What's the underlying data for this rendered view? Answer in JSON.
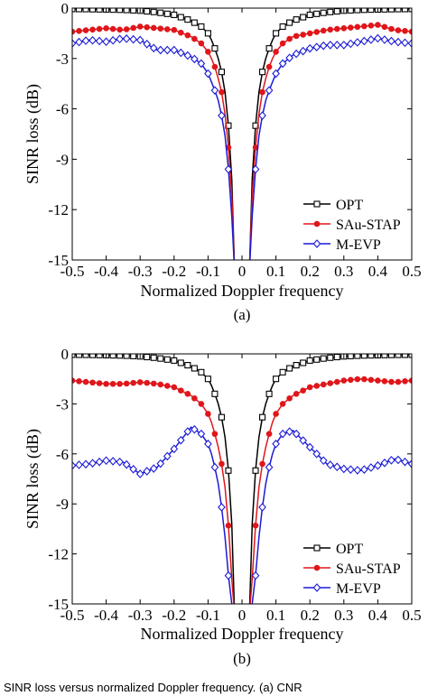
{
  "chart_data": [
    {
      "type": "line",
      "panel_label": "(a)",
      "xlabel": "Normalized Doppler frequency",
      "ylabel": "SINR loss (dB)",
      "xlim": [
        -0.5,
        0.5
      ],
      "ylim": [
        -15,
        0
      ],
      "xticks": [
        -0.5,
        -0.4,
        -0.3,
        -0.2,
        -0.1,
        0,
        0.1,
        0.2,
        0.3,
        0.4,
        0.5
      ],
      "xtick_labels": [
        "-0.5",
        "-0.4",
        "-0.3",
        "-0.2",
        "-0.1",
        "0",
        "0.1",
        "0.2",
        "0.3",
        "0.4",
        "0.5"
      ],
      "yticks": [
        0,
        -3,
        -6,
        -9,
        -12,
        -15
      ],
      "ytick_labels": [
        "0",
        "-3",
        "-6",
        "-9",
        "-12",
        "-15"
      ],
      "grid": false,
      "legend_position": "bottom-right",
      "series": [
        {
          "name": "OPT",
          "color": "#000000",
          "marker": "square",
          "x": [
            -0.5,
            -0.45,
            -0.4,
            -0.35,
            -0.3,
            -0.25,
            -0.2,
            -0.15,
            -0.12,
            -0.1,
            -0.09,
            -0.08,
            -0.07,
            -0.06,
            -0.05,
            -0.04,
            -0.03,
            0.03,
            0.04,
            0.05,
            0.06,
            0.07,
            0.08,
            0.09,
            0.1,
            0.12,
            0.15,
            0.2,
            0.25,
            0.3,
            0.35,
            0.4,
            0.45,
            0.5
          ],
          "y": [
            -0.05,
            -0.06,
            -0.08,
            -0.1,
            -0.15,
            -0.25,
            -0.4,
            -0.75,
            -1.1,
            -1.5,
            -1.9,
            -2.4,
            -3.0,
            -3.8,
            -5.0,
            -7.0,
            -10.2,
            -10.2,
            -7.0,
            -5.0,
            -3.8,
            -3.0,
            -2.4,
            -1.9,
            -1.5,
            -1.1,
            -0.75,
            -0.4,
            -0.25,
            -0.15,
            -0.1,
            -0.08,
            -0.06,
            -0.05
          ]
        },
        {
          "name": "SAu-STAP",
          "color": "#e0161b",
          "marker": "circle",
          "x": [
            -0.5,
            -0.45,
            -0.4,
            -0.35,
            -0.3,
            -0.25,
            -0.2,
            -0.15,
            -0.12,
            -0.1,
            -0.09,
            -0.08,
            -0.07,
            -0.06,
            -0.05,
            -0.04,
            -0.03,
            0.03,
            0.04,
            0.05,
            0.06,
            0.07,
            0.08,
            0.09,
            0.1,
            0.12,
            0.15,
            0.2,
            0.25,
            0.3,
            0.35,
            0.4,
            0.45,
            0.5
          ],
          "y": [
            -1.4,
            -1.3,
            -1.2,
            -1.3,
            -1.1,
            -1.2,
            -1.3,
            -1.7,
            -2.1,
            -2.6,
            -3.0,
            -3.5,
            -4.2,
            -5.0,
            -6.3,
            -8.3,
            -11.2,
            -11.2,
            -8.3,
            -6.3,
            -5.0,
            -4.2,
            -3.5,
            -3.0,
            -2.6,
            -2.1,
            -1.7,
            -1.5,
            -1.3,
            -1.2,
            -1.1,
            -1.0,
            -1.3,
            -1.4
          ]
        },
        {
          "name": "M-EVP",
          "color": "#1b1bd6",
          "marker": "diamond",
          "x": [
            -0.5,
            -0.45,
            -0.4,
            -0.35,
            -0.3,
            -0.25,
            -0.2,
            -0.15,
            -0.12,
            -0.1,
            -0.09,
            -0.08,
            -0.07,
            -0.06,
            -0.05,
            -0.04,
            -0.03,
            0.03,
            0.04,
            0.05,
            0.06,
            0.07,
            0.08,
            0.09,
            0.1,
            0.12,
            0.15,
            0.2,
            0.25,
            0.3,
            0.35,
            0.4,
            0.45,
            0.5
          ],
          "y": [
            -2.1,
            -1.9,
            -2.0,
            -1.8,
            -1.9,
            -2.5,
            -2.5,
            -2.9,
            -3.3,
            -3.9,
            -4.4,
            -4.9,
            -5.5,
            -6.4,
            -7.6,
            -9.6,
            -12.4,
            -12.4,
            -9.6,
            -7.6,
            -6.4,
            -5.5,
            -4.9,
            -4.4,
            -3.9,
            -3.3,
            -2.8,
            -2.4,
            -2.2,
            -2.2,
            -2.0,
            -1.8,
            -2.0,
            -2.1
          ]
        }
      ]
    },
    {
      "type": "line",
      "panel_label": "(b)",
      "xlabel": "Normalized Doppler frequency",
      "ylabel": "SINR loss (dB)",
      "xlim": [
        -0.5,
        0.5
      ],
      "ylim": [
        -15,
        0
      ],
      "xticks": [
        -0.5,
        -0.4,
        -0.3,
        -0.2,
        -0.1,
        0,
        0.1,
        0.2,
        0.3,
        0.4,
        0.5
      ],
      "xtick_labels": [
        "-0.5",
        "-0.4",
        "-0.3",
        "-0.2",
        "-0.1",
        "0",
        "0.1",
        "0.2",
        "0.3",
        "0.4",
        "0.5"
      ],
      "yticks": [
        0,
        -3,
        -6,
        -9,
        -12,
        -15
      ],
      "ytick_labels": [
        "0",
        "-3",
        "-6",
        "-9",
        "-12",
        "-15"
      ],
      "grid": false,
      "legend_position": "bottom-right",
      "series": [
        {
          "name": "OPT",
          "color": "#000000",
          "marker": "square",
          "x": [
            -0.5,
            -0.45,
            -0.4,
            -0.35,
            -0.3,
            -0.25,
            -0.2,
            -0.15,
            -0.12,
            -0.1,
            -0.09,
            -0.08,
            -0.07,
            -0.06,
            -0.05,
            -0.04,
            -0.03,
            0.03,
            0.04,
            0.05,
            0.06,
            0.07,
            0.08,
            0.09,
            0.1,
            0.12,
            0.15,
            0.2,
            0.25,
            0.3,
            0.35,
            0.4,
            0.45,
            0.5
          ],
          "y": [
            -0.05,
            -0.06,
            -0.08,
            -0.1,
            -0.15,
            -0.25,
            -0.4,
            -0.75,
            -1.1,
            -1.5,
            -1.9,
            -2.4,
            -3.0,
            -3.8,
            -5.0,
            -7.0,
            -10.2,
            -10.2,
            -7.0,
            -5.0,
            -3.8,
            -3.0,
            -2.4,
            -1.9,
            -1.5,
            -1.1,
            -0.75,
            -0.4,
            -0.25,
            -0.15,
            -0.1,
            -0.08,
            -0.06,
            -0.05
          ]
        },
        {
          "name": "SAu-STAP",
          "color": "#e0161b",
          "marker": "circle",
          "x": [
            -0.5,
            -0.45,
            -0.4,
            -0.35,
            -0.3,
            -0.25,
            -0.2,
            -0.15,
            -0.12,
            -0.1,
            -0.09,
            -0.08,
            -0.07,
            -0.06,
            -0.05,
            -0.04,
            -0.03,
            0.03,
            0.04,
            0.05,
            0.06,
            0.07,
            0.08,
            0.09,
            0.1,
            0.12,
            0.15,
            0.2,
            0.25,
            0.3,
            0.35,
            0.4,
            0.45,
            0.5
          ],
          "y": [
            -1.6,
            -1.7,
            -1.8,
            -1.8,
            -1.7,
            -1.8,
            -2.0,
            -2.5,
            -3.0,
            -3.6,
            -4.1,
            -4.8,
            -5.6,
            -6.6,
            -8.0,
            -10.3,
            -13.5,
            -13.5,
            -10.3,
            -8.0,
            -6.6,
            -5.6,
            -4.8,
            -4.1,
            -3.6,
            -3.0,
            -2.5,
            -2.0,
            -1.8,
            -1.6,
            -1.5,
            -1.6,
            -1.7,
            -1.6
          ]
        },
        {
          "name": "M-EVP",
          "color": "#1b1bd6",
          "marker": "diamond",
          "x": [
            -0.5,
            -0.45,
            -0.4,
            -0.35,
            -0.3,
            -0.25,
            -0.2,
            -0.15,
            -0.12,
            -0.1,
            -0.09,
            -0.08,
            -0.07,
            -0.06,
            -0.05,
            -0.04,
            -0.03,
            0.03,
            0.04,
            0.05,
            0.06,
            0.07,
            0.08,
            0.09,
            0.1,
            0.12,
            0.15,
            0.2,
            0.25,
            0.3,
            0.35,
            0.4,
            0.45,
            0.5
          ],
          "y": [
            -6.7,
            -6.6,
            -6.4,
            -6.5,
            -7.2,
            -6.8,
            -5.7,
            -4.4,
            -4.8,
            -5.4,
            -6.0,
            -6.8,
            -7.8,
            -9.2,
            -11.0,
            -13.3,
            -15.0,
            -15.0,
            -13.3,
            -11.0,
            -9.2,
            -7.8,
            -6.8,
            -6.0,
            -5.4,
            -4.8,
            -4.6,
            -5.6,
            -6.6,
            -6.9,
            -7.0,
            -6.7,
            -6.3,
            -6.6
          ]
        }
      ]
    }
  ],
  "caption": "SINR loss versus normalized Doppler frequency. (a) CNR"
}
